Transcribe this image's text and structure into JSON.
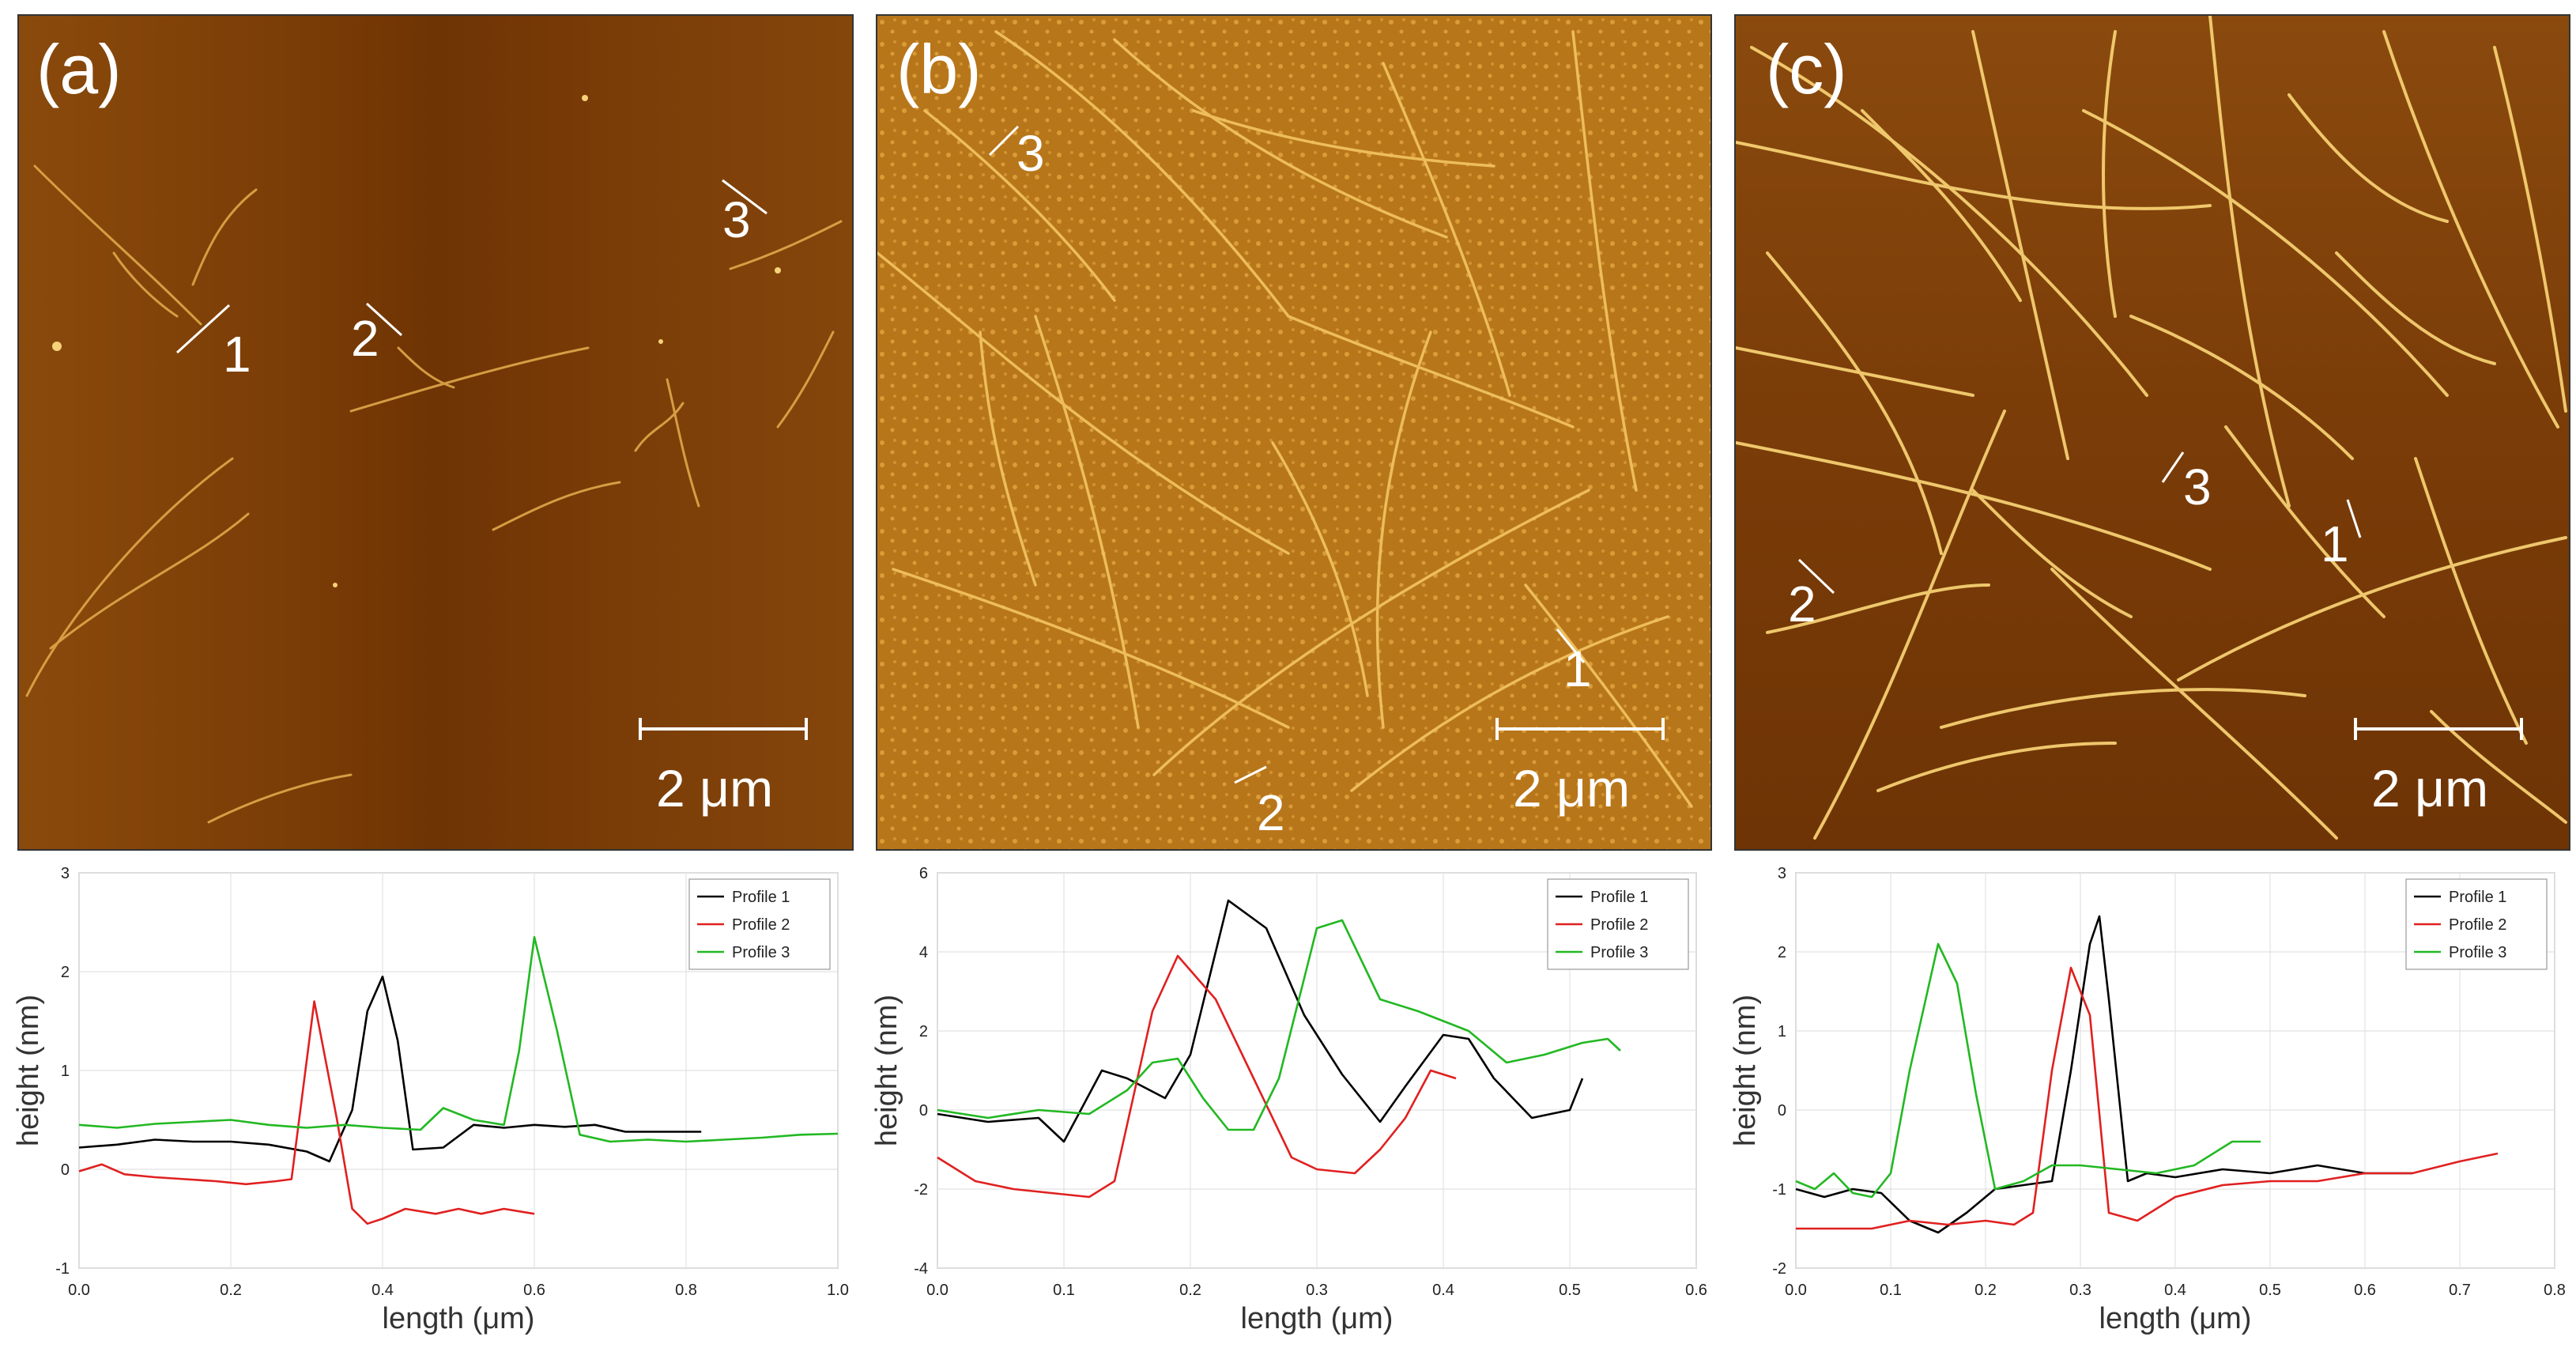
{
  "panels": [
    {
      "id": "a",
      "label": "(a)",
      "scale_bar": "2 μm",
      "markers": [
        {
          "label": "1"
        },
        {
          "label": "2"
        },
        {
          "label": "3"
        }
      ],
      "colors": {
        "bg": "#7a3a06",
        "fiber": "#e8b455"
      }
    },
    {
      "id": "b",
      "label": "(b)",
      "scale_bar": "2 μm",
      "markers": [
        {
          "label": "1"
        },
        {
          "label": "2"
        },
        {
          "label": "3"
        }
      ],
      "colors": {
        "bg": "#b87215",
        "fiber": "#f2c25e"
      }
    },
    {
      "id": "c",
      "label": "(c)",
      "scale_bar": "2 μm",
      "markers": [
        {
          "label": "1"
        },
        {
          "label": "2"
        },
        {
          "label": "3"
        }
      ],
      "colors": {
        "bg": "#7d3f09",
        "fiber": "#f6d27a"
      }
    }
  ],
  "chart_data": [
    {
      "type": "line",
      "panel": "a",
      "xlabel": "length (μm)",
      "ylabel": "height (nm)",
      "xlim": [
        0,
        1.0
      ],
      "ylim": [
        -1,
        3
      ],
      "xticks": [
        "0.0",
        "0.2",
        "0.4",
        "0.6",
        "0.8",
        "1.0"
      ],
      "yticks": [
        "-1",
        "0",
        "1",
        "2",
        "3"
      ],
      "xtick_values": [
        0,
        0.2,
        0.4,
        0.6,
        0.8,
        1.0
      ],
      "ytick_values": [
        -1,
        0,
        1,
        2,
        3
      ],
      "legend": "top-right",
      "series": [
        {
          "name": "Profile 1",
          "color": "#000000",
          "x": [
            0,
            0.05,
            0.1,
            0.15,
            0.2,
            0.25,
            0.3,
            0.33,
            0.36,
            0.38,
            0.4,
            0.42,
            0.44,
            0.48,
            0.52,
            0.56,
            0.6,
            0.64,
            0.68,
            0.72,
            0.76,
            0.82
          ],
          "y": [
            0.22,
            0.25,
            0.3,
            0.28,
            0.28,
            0.25,
            0.18,
            0.08,
            0.6,
            1.6,
            1.95,
            1.3,
            0.2,
            0.22,
            0.45,
            0.42,
            0.45,
            0.43,
            0.45,
            0.38,
            0.38,
            0.38
          ]
        },
        {
          "name": "Profile 2",
          "color": "#e02020",
          "x": [
            0,
            0.03,
            0.06,
            0.1,
            0.14,
            0.18,
            0.22,
            0.26,
            0.28,
            0.31,
            0.34,
            0.36,
            0.38,
            0.4,
            0.43,
            0.47,
            0.5,
            0.53,
            0.56,
            0.6
          ],
          "y": [
            -0.02,
            0.05,
            -0.05,
            -0.08,
            -0.1,
            -0.12,
            -0.15,
            -0.12,
            -0.1,
            1.7,
            0.5,
            -0.4,
            -0.55,
            -0.5,
            -0.4,
            -0.45,
            -0.4,
            -0.45,
            -0.4,
            -0.45
          ]
        },
        {
          "name": "Profile 3",
          "color": "#22b822",
          "x": [
            0,
            0.05,
            0.1,
            0.15,
            0.2,
            0.25,
            0.3,
            0.35,
            0.4,
            0.45,
            0.48,
            0.52,
            0.56,
            0.58,
            0.6,
            0.63,
            0.66,
            0.7,
            0.75,
            0.8,
            0.85,
            0.9,
            0.95,
            1.0
          ],
          "y": [
            0.45,
            0.42,
            0.46,
            0.48,
            0.5,
            0.45,
            0.42,
            0.45,
            0.42,
            0.4,
            0.62,
            0.5,
            0.45,
            1.2,
            2.35,
            1.4,
            0.35,
            0.28,
            0.3,
            0.28,
            0.3,
            0.32,
            0.35,
            0.36
          ]
        }
      ]
    },
    {
      "type": "line",
      "panel": "b",
      "xlabel": "length (μm)",
      "ylabel": "height (nm)",
      "xlim": [
        0,
        0.6
      ],
      "ylim": [
        -4,
        6
      ],
      "xticks": [
        "0.0",
        "0.1",
        "0.2",
        "0.3",
        "0.4",
        "0.5",
        "0.6"
      ],
      "yticks": [
        "-4",
        "-2",
        "0",
        "2",
        "4",
        "6"
      ],
      "xtick_values": [
        0,
        0.1,
        0.2,
        0.3,
        0.4,
        0.5,
        0.6
      ],
      "ytick_values": [
        -4,
        -2,
        0,
        2,
        4,
        6
      ],
      "legend": "top-right",
      "series": [
        {
          "name": "Profile 1",
          "color": "#000000",
          "x": [
            0,
            0.04,
            0.08,
            0.1,
            0.13,
            0.15,
            0.18,
            0.2,
            0.23,
            0.26,
            0.29,
            0.32,
            0.35,
            0.37,
            0.4,
            0.42,
            0.44,
            0.47,
            0.5,
            0.51
          ],
          "y": [
            -0.1,
            -0.3,
            -0.2,
            -0.8,
            1.0,
            0.8,
            0.3,
            1.4,
            5.3,
            4.6,
            2.4,
            0.9,
            -0.3,
            0.6,
            1.9,
            1.8,
            0.8,
            -0.2,
            0.0,
            0.8
          ]
        },
        {
          "name": "Profile 2",
          "color": "#e02020",
          "x": [
            0,
            0.03,
            0.06,
            0.09,
            0.12,
            0.14,
            0.17,
            0.19,
            0.22,
            0.25,
            0.28,
            0.3,
            0.33,
            0.35,
            0.37,
            0.39,
            0.41
          ],
          "y": [
            -1.2,
            -1.8,
            -2.0,
            -2.1,
            -2.2,
            -1.8,
            2.5,
            3.9,
            2.8,
            0.8,
            -1.2,
            -1.5,
            -1.6,
            -1.0,
            -0.2,
            1.0,
            0.8
          ]
        },
        {
          "name": "Profile 3",
          "color": "#22b822",
          "x": [
            0,
            0.04,
            0.08,
            0.12,
            0.15,
            0.17,
            0.19,
            0.21,
            0.23,
            0.25,
            0.27,
            0.3,
            0.32,
            0.35,
            0.38,
            0.42,
            0.45,
            0.48,
            0.51,
            0.53,
            0.54
          ],
          "y": [
            0.0,
            -0.2,
            0.0,
            -0.1,
            0.5,
            1.2,
            1.3,
            0.3,
            -0.5,
            -0.5,
            0.8,
            4.6,
            4.8,
            2.8,
            2.5,
            2.0,
            1.2,
            1.4,
            1.7,
            1.8,
            1.5
          ]
        }
      ]
    },
    {
      "type": "line",
      "panel": "c",
      "xlabel": "length (μm)",
      "ylabel": "height (nm)",
      "xlim": [
        0,
        0.8
      ],
      "ylim": [
        -2,
        3
      ],
      "xticks": [
        "0.0",
        "0.1",
        "0.2",
        "0.3",
        "0.4",
        "0.5",
        "0.6",
        "0.7",
        "0.8"
      ],
      "yticks": [
        "-2",
        "-1",
        "0",
        "1",
        "2",
        "3"
      ],
      "xtick_values": [
        0,
        0.1,
        0.2,
        0.3,
        0.4,
        0.5,
        0.6,
        0.7,
        0.8
      ],
      "ytick_values": [
        -2,
        -1,
        0,
        1,
        2,
        3
      ],
      "legend": "top-right",
      "series": [
        {
          "name": "Profile 1",
          "color": "#000000",
          "x": [
            0,
            0.03,
            0.06,
            0.09,
            0.12,
            0.15,
            0.18,
            0.21,
            0.24,
            0.27,
            0.29,
            0.31,
            0.32,
            0.33,
            0.35,
            0.37,
            0.4,
            0.45,
            0.5,
            0.55,
            0.6,
            0.65
          ],
          "y": [
            -1.0,
            -1.1,
            -1.0,
            -1.05,
            -1.4,
            -1.55,
            -1.3,
            -1.0,
            -0.95,
            -0.9,
            0.5,
            2.1,
            2.45,
            1.4,
            -0.9,
            -0.8,
            -0.85,
            -0.75,
            -0.8,
            -0.7,
            -0.8,
            -0.8
          ]
        },
        {
          "name": "Profile 2",
          "color": "#e02020",
          "x": [
            0,
            0.04,
            0.08,
            0.12,
            0.16,
            0.2,
            0.23,
            0.25,
            0.27,
            0.29,
            0.31,
            0.33,
            0.36,
            0.4,
            0.45,
            0.5,
            0.55,
            0.6,
            0.65,
            0.7,
            0.74
          ],
          "y": [
            -1.5,
            -1.5,
            -1.5,
            -1.4,
            -1.45,
            -1.4,
            -1.45,
            -1.3,
            0.5,
            1.8,
            1.2,
            -1.3,
            -1.4,
            -1.1,
            -0.95,
            -0.9,
            -0.9,
            -0.8,
            -0.8,
            -0.65,
            -0.55
          ]
        },
        {
          "name": "Profile 3",
          "color": "#22b822",
          "x": [
            0,
            0.02,
            0.04,
            0.06,
            0.08,
            0.1,
            0.12,
            0.15,
            0.17,
            0.19,
            0.21,
            0.24,
            0.27,
            0.3,
            0.34,
            0.38,
            0.42,
            0.46,
            0.49
          ],
          "y": [
            -0.9,
            -1.0,
            -0.8,
            -1.05,
            -1.1,
            -0.8,
            0.5,
            2.1,
            1.6,
            0.2,
            -1.0,
            -0.9,
            -0.7,
            -0.7,
            -0.75,
            -0.8,
            -0.7,
            -0.4,
            -0.4
          ]
        }
      ]
    }
  ]
}
